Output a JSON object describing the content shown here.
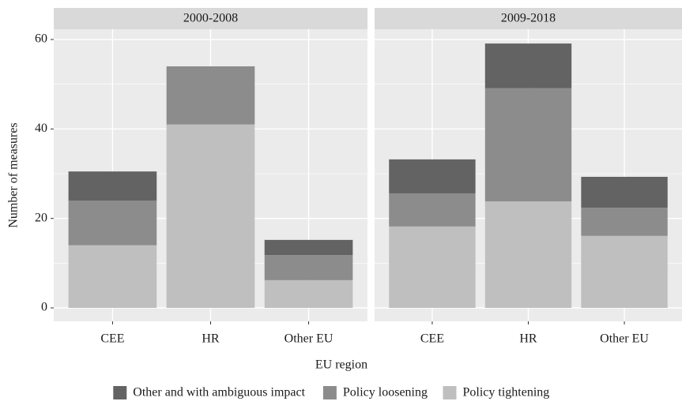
{
  "chart_data": {
    "type": "bar",
    "stacked": true,
    "xlabel": "EU region",
    "ylabel": "Number of measures",
    "facets": [
      "2000-2008",
      "2009-2018"
    ],
    "categories": [
      "CEE",
      "HR",
      "Other EU"
    ],
    "series": [
      {
        "name": "Policy tightening",
        "color": "#bfbfbf",
        "values": [
          [
            14,
            41,
            6.2
          ],
          [
            18.2,
            23.8,
            16.1
          ]
        ]
      },
      {
        "name": "Policy loosening",
        "color": "#8c8c8c",
        "values": [
          [
            10,
            13,
            5.6
          ],
          [
            7.4,
            25.3,
            6.3
          ]
        ]
      },
      {
        "name": "Other and with ambiguous impact",
        "color": "#636363",
        "values": [
          [
            6.5,
            0,
            3.4
          ],
          [
            7.6,
            10,
            6.9
          ]
        ]
      }
    ],
    "legend_order": [
      2,
      1,
      0
    ],
    "ylim": [
      -3,
      62.3
    ],
    "yticks": [
      0,
      20,
      40,
      60
    ],
    "grid": true
  }
}
